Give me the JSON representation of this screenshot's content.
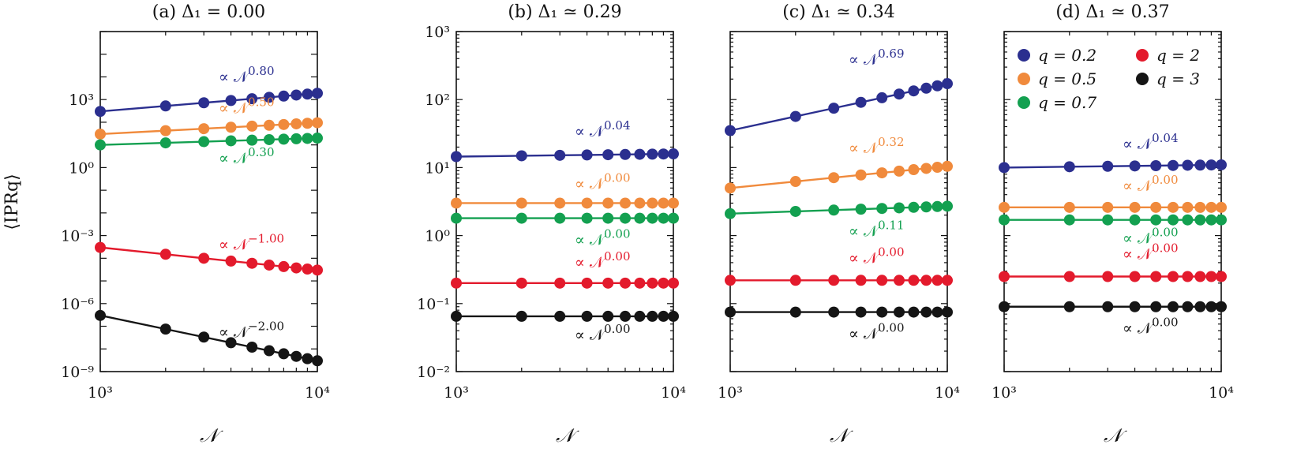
{
  "figure": {
    "ylabel": "⟨IPRq⟩",
    "xlabel": "𝒩",
    "legend": {
      "placement": "top-right of panel (d)",
      "entries": [
        {
          "label": "q = 0.2",
          "color": "#2b2f8f"
        },
        {
          "label": "q = 2",
          "color": "#e31a2c"
        },
        {
          "label": "q = 0.5",
          "color": "#f08a3c"
        },
        {
          "label": "q = 3",
          "color": "#151515"
        },
        {
          "label": "q = 0.7",
          "color": "#13a050"
        }
      ]
    }
  },
  "chart_data": [
    {
      "type": "line",
      "title": "(a) Δ₁ = 0.00",
      "xscale": "log",
      "yscale": "log",
      "xlim": [
        1000,
        10000
      ],
      "ylim": [
        1e-09,
        1000000.0
      ],
      "xticks": [
        {
          "value": 1000,
          "label": "10³"
        },
        {
          "value": 10000,
          "label": "10⁴"
        }
      ],
      "yticks": [
        {
          "value": 1e-09,
          "label": "10⁻⁹"
        },
        {
          "value": 1e-06,
          "label": "10⁻⁶"
        },
        {
          "value": 0.001,
          "label": "10⁻³"
        },
        {
          "value": 1,
          "label": "10⁰"
        },
        {
          "value": 1000,
          "label": "10³"
        }
      ],
      "x": [
        1000,
        2000,
        3000,
        4000,
        5000,
        6000,
        7000,
        8000,
        9000,
        10000
      ],
      "series": [
        {
          "name": "q = 0.2",
          "color": "#2b2f8f",
          "amp": 300,
          "exp": 0.8,
          "annotation": "∝ 𝒩^0.80"
        },
        {
          "name": "q = 0.5",
          "color": "#f08a3c",
          "amp": 30,
          "exp": 0.5,
          "annotation": "∝ 𝒩^0.50"
        },
        {
          "name": "q = 0.7",
          "color": "#13a050",
          "amp": 10,
          "exp": 0.3,
          "annotation": "∝ 𝒩^0.30"
        },
        {
          "name": "q = 2",
          "color": "#e31a2c",
          "amp": 0.0003,
          "exp": -1.0,
          "annotation": "∝ 𝒩^−1.00"
        },
        {
          "name": "q = 3",
          "color": "#151515",
          "amp": 3e-07,
          "exp": -2.0,
          "annotation": "∝ 𝒩^−2.00"
        }
      ]
    },
    {
      "type": "line",
      "title": "(b) Δ₁ ≃ 0.29",
      "xscale": "log",
      "yscale": "log",
      "xlim": [
        1000,
        10000
      ],
      "ylim": [
        0.01,
        1000
      ],
      "xticks": [
        {
          "value": 1000,
          "label": "10³"
        },
        {
          "value": 10000,
          "label": "10⁴"
        }
      ],
      "yticks": [
        {
          "value": 0.01,
          "label": "10⁻²"
        },
        {
          "value": 0.1,
          "label": "10⁻¹"
        },
        {
          "value": 1,
          "label": "10⁰"
        },
        {
          "value": 10,
          "label": "10¹"
        },
        {
          "value": 100,
          "label": "10²"
        },
        {
          "value": 1000,
          "label": "10³"
        }
      ],
      "x": [
        1000,
        2000,
        3000,
        4000,
        5000,
        6000,
        7000,
        8000,
        9000,
        10000
      ],
      "series": [
        {
          "name": "q = 0.2",
          "color": "#2b2f8f",
          "amp": 14.5,
          "exp": 0.04,
          "annotation": "∝ 𝒩^0.04"
        },
        {
          "name": "q = 0.5",
          "color": "#f08a3c",
          "amp": 3.0,
          "exp": 0.0,
          "annotation": "∝ 𝒩^0.00"
        },
        {
          "name": "q = 0.7",
          "color": "#13a050",
          "amp": 1.8,
          "exp": 0.0,
          "annotation": "∝ 𝒩^0.00"
        },
        {
          "name": "q = 2",
          "color": "#e31a2c",
          "amp": 0.2,
          "exp": 0.0,
          "annotation": "∝ 𝒩^0.00"
        },
        {
          "name": "q = 3",
          "color": "#151515",
          "amp": 0.065,
          "exp": 0.0,
          "annotation": "∝ 𝒩^0.00"
        }
      ]
    },
    {
      "type": "line",
      "title": "(c) Δ₁ ≃ 0.34",
      "xscale": "log",
      "yscale": "log",
      "xlim": [
        1000,
        10000
      ],
      "ylim": [
        0.01,
        1000
      ],
      "xticks": [
        {
          "value": 1000,
          "label": "10³"
        },
        {
          "value": 10000,
          "label": "10⁴"
        }
      ],
      "yticks": [],
      "x": [
        1000,
        2000,
        3000,
        4000,
        5000,
        6000,
        7000,
        8000,
        9000,
        10000
      ],
      "series": [
        {
          "name": "q = 0.2",
          "color": "#2b2f8f",
          "amp": 35,
          "exp": 0.69,
          "annotation": "∝ 𝒩^0.69"
        },
        {
          "name": "q = 0.5",
          "color": "#f08a3c",
          "amp": 5.0,
          "exp": 0.32,
          "annotation": "∝ 𝒩^0.32"
        },
        {
          "name": "q = 0.7",
          "color": "#13a050",
          "amp": 2.1,
          "exp": 0.11,
          "annotation": "∝ 𝒩^0.11"
        },
        {
          "name": "q = 2",
          "color": "#e31a2c",
          "amp": 0.22,
          "exp": 0.0,
          "annotation": "∝ 𝒩^0.00"
        },
        {
          "name": "q = 3",
          "color": "#151515",
          "amp": 0.075,
          "exp": 0.0,
          "annotation": "∝ 𝒩^0.00"
        }
      ]
    },
    {
      "type": "line",
      "title": "(d) Δ₁ ≃ 0.37",
      "xscale": "log",
      "yscale": "log",
      "xlim": [
        1000,
        10000
      ],
      "ylim": [
        0.01,
        1000
      ],
      "xticks": [
        {
          "value": 1000,
          "label": "10³"
        },
        {
          "value": 10000,
          "label": "10⁴"
        }
      ],
      "yticks": [],
      "x": [
        1000,
        2000,
        3000,
        4000,
        5000,
        6000,
        7000,
        8000,
        9000,
        10000
      ],
      "series": [
        {
          "name": "q = 0.2",
          "color": "#2b2f8f",
          "amp": 10,
          "exp": 0.04,
          "annotation": "∝ 𝒩^0.04"
        },
        {
          "name": "q = 0.5",
          "color": "#f08a3c",
          "amp": 2.6,
          "exp": 0.0,
          "annotation": "∝ 𝒩^0.00"
        },
        {
          "name": "q = 0.7",
          "color": "#13a050",
          "amp": 1.7,
          "exp": 0.0,
          "annotation": "∝ 𝒩^0.00"
        },
        {
          "name": "q = 2",
          "color": "#e31a2c",
          "amp": 0.25,
          "exp": 0.0,
          "annotation": "∝ 𝒩^0.00"
        },
        {
          "name": "q = 3",
          "color": "#151515",
          "amp": 0.09,
          "exp": 0.0,
          "annotation": "∝ 𝒩^0.00"
        }
      ]
    }
  ]
}
